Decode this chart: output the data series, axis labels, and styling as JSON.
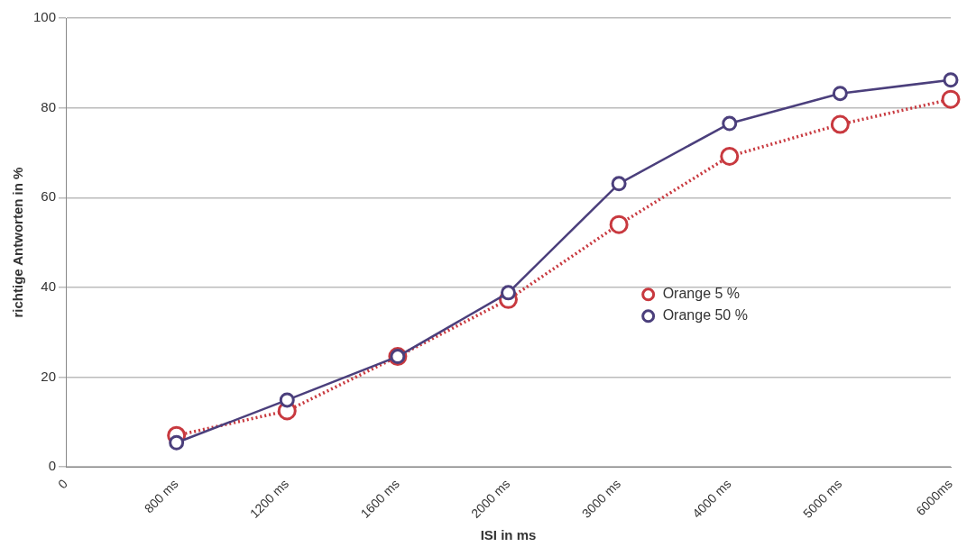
{
  "chart_data": {
    "type": "line",
    "xlabel": "ISI in ms",
    "ylabel": "richtige Antworten in %",
    "categories": [
      "0",
      "800 ms",
      "1200 ms",
      "1600 ms",
      "2000 ms",
      "3000 ms",
      "4000 ms",
      "5000 ms",
      "6000ms"
    ],
    "series": [
      {
        "name": "Orange 5 %",
        "color": "#c8393f",
        "line_style": "dotted",
        "values": [
          null,
          7,
          12.5,
          24.6,
          37.3,
          54,
          69.2,
          76.3,
          81.9
        ]
      },
      {
        "name": "Orange 50 %",
        "color": "#4b3f7c",
        "line_style": "solid",
        "values": [
          null,
          5.4,
          14.9,
          24.6,
          38.8,
          63.1,
          76.5,
          83.2,
          86.2
        ]
      }
    ],
    "ylim": [
      0,
      100
    ],
    "yticks": [
      0,
      20,
      40,
      60,
      80,
      100
    ],
    "grid": "y",
    "legend": "center right",
    "marker": "circle"
  }
}
